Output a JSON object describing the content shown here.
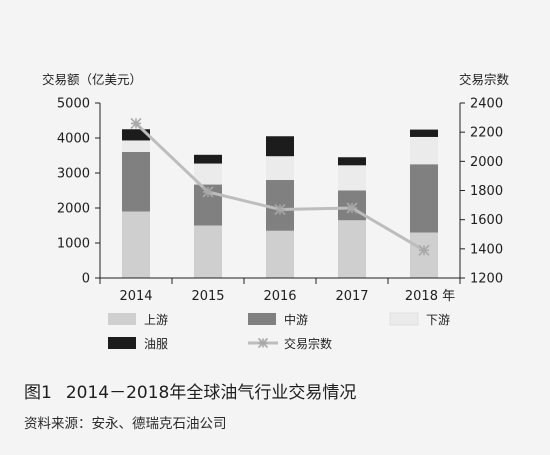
{
  "figure": {
    "number": "图1",
    "title": "2014－2018年全球油气行业交易情况",
    "source": "资料来源：安永、德瑞克石油公司"
  },
  "chart_data": {
    "type": "bar",
    "stacked": true,
    "categories": [
      "2014",
      "2015",
      "2016",
      "2017",
      "2018 年"
    ],
    "y_left": {
      "label": "交易额（亿美元）",
      "lim": [
        0,
        5000
      ],
      "ticks": [
        0,
        1000,
        2000,
        3000,
        4000,
        5000
      ]
    },
    "y_right": {
      "label": "交易宗数",
      "lim": [
        1200,
        2400
      ],
      "ticks": [
        1200,
        1400,
        1600,
        1800,
        2000,
        2200,
        2400
      ]
    },
    "series": [
      {
        "name": "上游",
        "type": "bar",
        "axis": "left",
        "color": "#cfcfcf",
        "values": [
          1900,
          1500,
          1350,
          1650,
          1300
        ]
      },
      {
        "name": "中游",
        "type": "bar",
        "axis": "left",
        "color": "#808080",
        "values": [
          1700,
          1170,
          1450,
          850,
          1950
        ]
      },
      {
        "name": "下游",
        "type": "bar",
        "axis": "left",
        "color": "#ebebeb",
        "values": [
          330,
          600,
          680,
          720,
          780
        ]
      },
      {
        "name": "油服",
        "type": "bar",
        "axis": "left",
        "color": "#1c1c1c",
        "values": [
          320,
          250,
          570,
          230,
          210
        ]
      },
      {
        "name": "交易宗数",
        "type": "line",
        "axis": "right",
        "color": "#bdbdbd",
        "marker": "asterisk",
        "values": [
          2260,
          1790,
          1670,
          1680,
          1390
        ]
      }
    ],
    "legend": {
      "placement": "bottom",
      "order": [
        "上游",
        "中游",
        "下游",
        "油服",
        "交易宗数"
      ]
    }
  }
}
